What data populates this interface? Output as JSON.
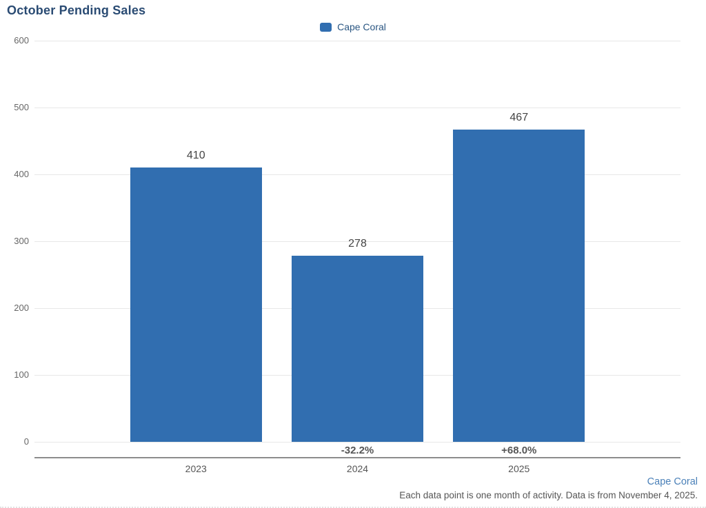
{
  "title": "October Pending Sales",
  "legend": {
    "label": "Cape Coral"
  },
  "colors": {
    "bar": "#316eb0",
    "title_text": "#2a4b73",
    "legend_text": "#2a5682",
    "axis_tick_text": "#666666",
    "value_label_text": "#444444",
    "change_label_text": "#555555",
    "category_text": "#555555",
    "gridline": "#e7e7e7",
    "axis_line": "#8c8c8c",
    "footer_link": "#4a80b8"
  },
  "chart_data": {
    "type": "bar",
    "title": "October Pending Sales",
    "series_name": "Cape Coral",
    "categories": [
      "2023",
      "2024",
      "2025"
    ],
    "values": [
      410,
      278,
      467
    ],
    "change_labels": [
      "",
      "-32.2%",
      "+68.0%"
    ],
    "xlabel": "",
    "ylabel": "",
    "ylim": [
      0,
      600
    ],
    "ytick_interval": 100,
    "yticks": [
      0,
      100,
      200,
      300,
      400,
      500,
      600
    ],
    "grid": true,
    "legend_position": "top-center"
  },
  "footer": {
    "link_label": "Cape Coral",
    "note": "Each data point is one month of activity. Data is from November 4, 2025."
  }
}
